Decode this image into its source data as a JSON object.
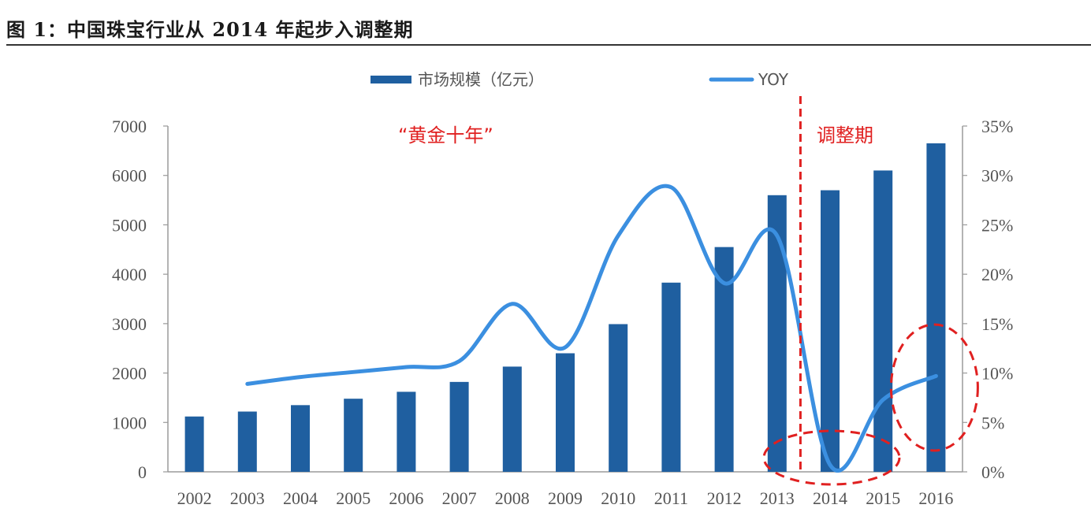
{
  "figure_title": "图 1：中国珠宝行业从 2014 年起步入调整期",
  "legend": {
    "bar_label": "市场规模（亿元）",
    "line_label": "YOY"
  },
  "annotations": {
    "golden_decade": "“黄金十年”",
    "adjustment": "调整期"
  },
  "colors": {
    "bar": "#1f5fa0",
    "line": "#3b8fe0",
    "annotation": "#e02020",
    "axis_text": "#555555"
  },
  "chart_data": {
    "type": "bar",
    "categories": [
      "2002",
      "2003",
      "2004",
      "2005",
      "2006",
      "2007",
      "2008",
      "2009",
      "2010",
      "2011",
      "2012",
      "2013",
      "2014",
      "2015",
      "2016"
    ],
    "series": [
      {
        "name": "市场规模（亿元）",
        "type": "bar",
        "axis": "left",
        "values": [
          1120,
          1220,
          1350,
          1480,
          1620,
          1820,
          2130,
          2400,
          2990,
          3830,
          4550,
          5600,
          5700,
          6100,
          6650
        ]
      },
      {
        "name": "YOY",
        "type": "line",
        "axis": "right",
        "values": [
          null,
          8.9,
          9.6,
          10.1,
          10.6,
          11.2,
          17.0,
          12.6,
          23.9,
          28.8,
          19.1,
          23.9,
          0.7,
          7.3,
          9.7
        ]
      }
    ],
    "y_left": {
      "ylim": [
        0,
        7000
      ],
      "ticks": [
        "0",
        "1000",
        "2000",
        "3000",
        "4000",
        "5000",
        "6000",
        "7000"
      ]
    },
    "y_right": {
      "ylim": [
        0,
        35
      ],
      "ticks": [
        "0%",
        "5%",
        "10%",
        "15%",
        "20%",
        "25%",
        "30%",
        "35%"
      ]
    },
    "legend_position": "top-center",
    "grid": false
  }
}
